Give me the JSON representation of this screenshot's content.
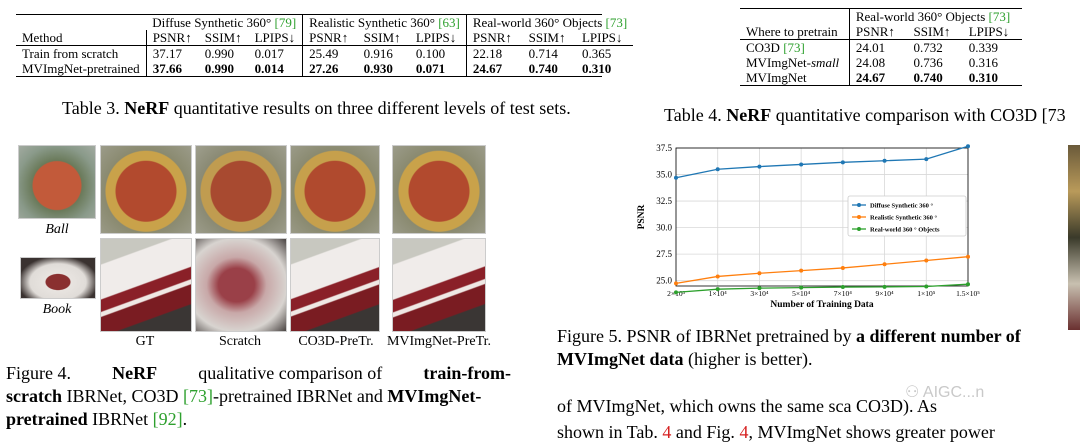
{
  "table3": {
    "groups": [
      {
        "name": "Diffuse Synthetic 360°",
        "ref": "[79]"
      },
      {
        "name": "Realistic Synthetic 360°",
        "ref": "[63]"
      },
      {
        "name": "Real-world 360° Objects",
        "ref": "[73]"
      }
    ],
    "method_header": "Method",
    "metrics": [
      "PSNR↑",
      "SSIM↑",
      "LPIPS↓"
    ],
    "rows": [
      {
        "method": "Train from scratch",
        "values": [
          "37.17",
          "0.990",
          "0.017",
          "25.49",
          "0.916",
          "0.100",
          "22.18",
          "0.714",
          "0.365"
        ]
      },
      {
        "method": "MVImgNet-pretrained",
        "values": [
          "37.66",
          "0.990",
          "0.014",
          "27.26",
          "0.930",
          "0.071",
          "24.67",
          "0.740",
          "0.310"
        ]
      }
    ],
    "caption_prefix": "Table 3. ",
    "caption_bold": "NeRF",
    "caption_rest": " quantitative results on three different levels of test sets."
  },
  "table4": {
    "group": "Real-world 360° Objects",
    "group_ref": "[73]",
    "where_header": "Where to pretrain",
    "metrics": [
      "PSNR↑",
      "SSIM↑",
      "LPIPS↓"
    ],
    "rows": [
      {
        "name": "CO3D",
        "ref": "[73]",
        "italic": "",
        "values": [
          "24.01",
          "0.732",
          "0.339"
        ]
      },
      {
        "name": "MVImgNet-",
        "ref": "",
        "italic": "small",
        "values": [
          "24.08",
          "0.736",
          "0.316"
        ]
      },
      {
        "name": "MVImgNet",
        "ref": "",
        "italic": "",
        "values": [
          "24.67",
          "0.740",
          "0.310"
        ]
      }
    ],
    "caption_prefix": "Table 4. ",
    "caption_bold": "NeRF",
    "caption_rest": " quantitative comparison with CO3D [73"
  },
  "figure4": {
    "row_labels": [
      "Ball",
      "Book"
    ],
    "col_labels": [
      "GT",
      "Scratch",
      "CO3D-PreTr.",
      "MVImgNet-PreTr."
    ],
    "caption_line1_prefix": "Figure 4.",
    "caption_line1_bold": "NeRF",
    "caption_line1_rest": "qualitative comparison of",
    "caption_line1_bold2": "train-from-",
    "caption_line2_bold": "scratch",
    "caption_line2_rest": " IBRNet, CO3D ",
    "caption_line2_ref": "[73]",
    "caption_line2_rest2": "-pretrained IBRNet and ",
    "caption_line2_bold2": "MVImgNet-",
    "caption_line3_bold": "pretrained",
    "caption_line3_rest": " IBRNet ",
    "caption_line3_ref": "[92]",
    "caption_line3_end": "."
  },
  "figure5": {
    "caption_line1_prefix": "Figure 5.  PSNR of IBRNet pretrained by ",
    "caption_line1_bold": "a different number of",
    "caption_line2_bold": "MVImgNet data",
    "caption_line2_rest": " (higher is better)."
  },
  "chart_data": {
    "type": "line",
    "x": [
      "2×10³",
      "1×10⁴",
      "3×10⁴",
      "5×10⁴",
      "7×10⁴",
      "9×10⁴",
      "1×10⁵",
      "1.5×10⁵"
    ],
    "xlabel": "Number of Training Data",
    "ylabel": "PSNR",
    "ylim": [
      24.5,
      37.5
    ],
    "yticks": [
      "25.0",
      "27.5",
      "30.0",
      "32.5",
      "35.0",
      "37.5"
    ],
    "grid": true,
    "legend_position": "center-right",
    "series": [
      {
        "name": "Diffuse Synthetic 360 °",
        "color": "#1f77b4",
        "values": [
          34.7,
          35.5,
          35.75,
          35.95,
          36.15,
          36.3,
          36.45,
          37.66
        ]
      },
      {
        "name": "Realistic Synthetic 360 °",
        "color": "#ff7f0e",
        "values": [
          24.75,
          25.4,
          25.7,
          25.95,
          26.2,
          26.55,
          26.9,
          27.26
        ]
      },
      {
        "name": "Real-world 360 ° Objects",
        "color": "#2ca02c",
        "values": [
          23.9,
          24.2,
          24.3,
          24.35,
          24.4,
          24.42,
          24.45,
          24.67
        ]
      }
    ]
  },
  "body_text": {
    "line1_a": "of MVImgNet, which owns the same sc",
    "line1_b": "a",
    "line1_c": "CO3D). As",
    "line2_a": "shown in Tab. ",
    "line2_ref1": "4",
    "line2_b": " and Fig. ",
    "line2_ref2": "4",
    "line2_c": ", MVImgNet shows greater power"
  },
  "watermark": "AIGC...n",
  "colors": {
    "green_ref": "#2ea02e",
    "red_ref": "#d62020"
  }
}
